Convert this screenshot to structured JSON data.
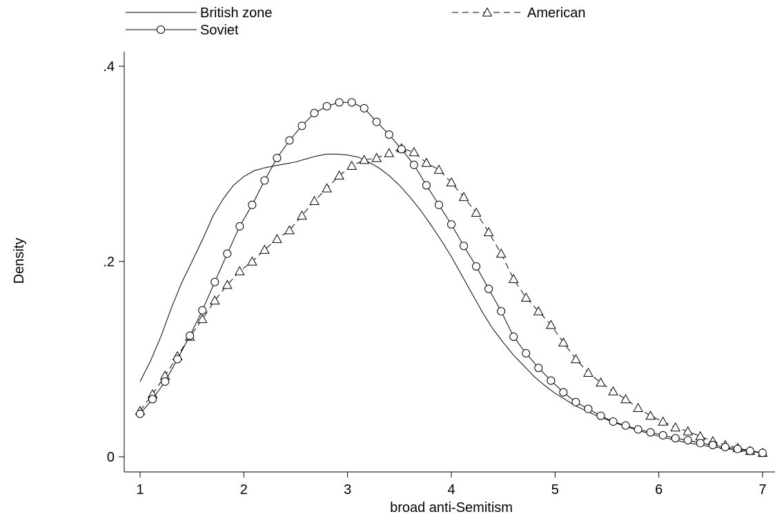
{
  "chart_data": {
    "type": "line",
    "title": "",
    "xlabel": "broad anti-Semitism",
    "ylabel": "Density",
    "xlim": [
      1,
      7
    ],
    "ylim": [
      0,
      0.4
    ],
    "xticks": [
      1,
      2,
      3,
      4,
      5,
      6,
      7
    ],
    "xtick_labels": [
      "1",
      "2",
      "3",
      "4",
      "5",
      "6",
      "7"
    ],
    "yticks": [
      0,
      0.2,
      0.4
    ],
    "ytick_labels": [
      "0",
      ".2",
      ".4"
    ],
    "grid": false,
    "legend_position": "top",
    "series": [
      {
        "name": "British zone",
        "style": "solid",
        "marker": "none",
        "color": "#000000",
        "x": [
          1.0,
          1.1,
          1.2,
          1.3,
          1.4,
          1.5,
          1.6,
          1.7,
          1.8,
          1.9,
          2.0,
          2.1,
          2.2,
          2.3,
          2.4,
          2.5,
          2.6,
          2.7,
          2.8,
          2.9,
          3.0,
          3.1,
          3.2,
          3.3,
          3.4,
          3.5,
          3.6,
          3.7,
          3.8,
          3.9,
          4.0,
          4.1,
          4.2,
          4.3,
          4.4,
          4.5,
          4.6,
          4.7,
          4.8,
          4.9,
          5.0,
          5.2,
          5.4,
          5.6,
          5.8,
          6.0,
          6.2,
          6.4,
          6.6,
          6.8,
          7.0
        ],
        "y": [
          0.077,
          0.098,
          0.123,
          0.152,
          0.178,
          0.2,
          0.222,
          0.246,
          0.264,
          0.278,
          0.287,
          0.293,
          0.296,
          0.298,
          0.3,
          0.302,
          0.305,
          0.308,
          0.31,
          0.31,
          0.309,
          0.307,
          0.302,
          0.296,
          0.288,
          0.278,
          0.266,
          0.253,
          0.238,
          0.222,
          0.205,
          0.186,
          0.167,
          0.148,
          0.131,
          0.117,
          0.104,
          0.093,
          0.082,
          0.073,
          0.065,
          0.052,
          0.042,
          0.034,
          0.027,
          0.021,
          0.016,
          0.012,
          0.009,
          0.006,
          0.004
        ]
      },
      {
        "name": "American",
        "style": "dashed",
        "marker": "triangle",
        "color": "#000000",
        "x": [
          1.0,
          1.12,
          1.24,
          1.36,
          1.48,
          1.6,
          1.72,
          1.84,
          1.96,
          2.08,
          2.2,
          2.32,
          2.44,
          2.56,
          2.68,
          2.8,
          2.92,
          3.04,
          3.16,
          3.28,
          3.4,
          3.52,
          3.64,
          3.76,
          3.88,
          4.0,
          4.12,
          4.24,
          4.36,
          4.48,
          4.6,
          4.72,
          4.84,
          4.96,
          5.08,
          5.2,
          5.32,
          5.44,
          5.56,
          5.68,
          5.8,
          5.92,
          6.04,
          6.16,
          6.28,
          6.4,
          6.52,
          6.64,
          6.76,
          6.88,
          7.0
        ],
        "y": [
          0.047,
          0.064,
          0.083,
          0.103,
          0.123,
          0.141,
          0.16,
          0.176,
          0.19,
          0.2,
          0.212,
          0.223,
          0.232,
          0.247,
          0.262,
          0.275,
          0.288,
          0.298,
          0.304,
          0.306,
          0.311,
          0.316,
          0.312,
          0.301,
          0.294,
          0.281,
          0.266,
          0.25,
          0.23,
          0.208,
          0.182,
          0.163,
          0.149,
          0.135,
          0.117,
          0.1,
          0.086,
          0.076,
          0.067,
          0.059,
          0.05,
          0.042,
          0.036,
          0.03,
          0.026,
          0.021,
          0.016,
          0.012,
          0.009,
          0.006,
          0.004
        ]
      },
      {
        "name": "Soviet",
        "style": "solid",
        "marker": "circle",
        "color": "#000000",
        "x": [
          1.0,
          1.12,
          1.24,
          1.36,
          1.48,
          1.6,
          1.72,
          1.84,
          1.96,
          2.08,
          2.2,
          2.32,
          2.44,
          2.56,
          2.68,
          2.8,
          2.92,
          3.04,
          3.16,
          3.28,
          3.4,
          3.52,
          3.64,
          3.76,
          3.88,
          4.0,
          4.12,
          4.24,
          4.36,
          4.48,
          4.6,
          4.72,
          4.84,
          4.96,
          5.08,
          5.2,
          5.32,
          5.44,
          5.56,
          5.68,
          5.8,
          5.92,
          6.04,
          6.16,
          6.28,
          6.4,
          6.52,
          6.64,
          6.76,
          6.88,
          7.0
        ],
        "y": [
          0.044,
          0.059,
          0.077,
          0.1,
          0.124,
          0.15,
          0.179,
          0.208,
          0.236,
          0.258,
          0.283,
          0.306,
          0.324,
          0.339,
          0.352,
          0.359,
          0.363,
          0.363,
          0.357,
          0.343,
          0.33,
          0.315,
          0.299,
          0.278,
          0.258,
          0.238,
          0.216,
          0.195,
          0.172,
          0.149,
          0.123,
          0.106,
          0.091,
          0.078,
          0.066,
          0.056,
          0.049,
          0.042,
          0.036,
          0.032,
          0.028,
          0.025,
          0.022,
          0.019,
          0.017,
          0.014,
          0.012,
          0.01,
          0.008,
          0.006,
          0.004
        ]
      }
    ]
  }
}
